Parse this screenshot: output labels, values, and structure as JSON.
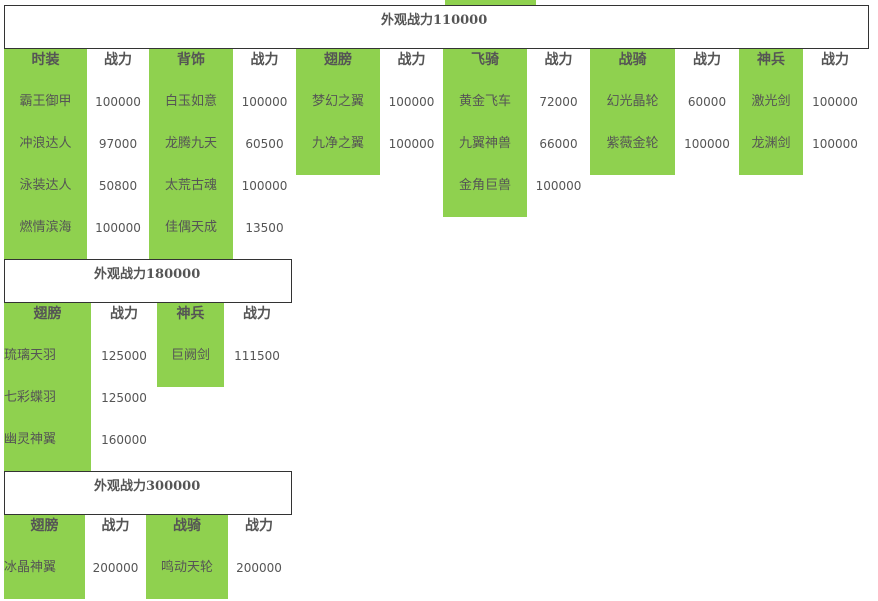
{
  "section1": {
    "title": "外观战力110000",
    "headers": [
      "时装",
      "战力",
      "背饰",
      "战力",
      "翅膀",
      "战力",
      "飞骑",
      "战力",
      "战骑",
      "战力",
      "神兵",
      "战力"
    ],
    "columns": [
      {
        "items": [
          "霸王御甲",
          "冲浪达人",
          "泳装达人",
          "燃情滨海"
        ],
        "powers": [
          "100000",
          "97000",
          "50800",
          "100000"
        ]
      },
      {
        "items": [
          "白玉如意",
          "龙腾九天",
          "太荒古魂",
          "佳偶天成"
        ],
        "powers": [
          "100000",
          "60500",
          "100000",
          "13500"
        ]
      },
      {
        "items": [
          "梦幻之翼",
          "九净之翼"
        ],
        "powers": [
          "100000",
          "100000"
        ]
      },
      {
        "items": [
          "黄金飞车",
          "九翼神兽",
          "金角巨兽"
        ],
        "powers": [
          "72000",
          "66000",
          "100000"
        ]
      },
      {
        "items": [
          "幻光晶轮",
          "紫薇金轮"
        ],
        "powers": [
          "60000",
          "100000"
        ]
      },
      {
        "items": [
          "激光剑",
          "龙渊剑"
        ],
        "powers": [
          "100000",
          "100000"
        ]
      }
    ]
  },
  "section2": {
    "title": "外观战力180000",
    "headers": [
      "翅膀",
      "战力",
      "神兵",
      "战力"
    ],
    "columns": [
      {
        "items": [
          "琉璃天羽",
          "七彩蝶羽",
          "幽灵神翼"
        ],
        "powers": [
          "125000",
          "125000",
          "160000"
        ]
      },
      {
        "items": [
          "巨阙剑"
        ],
        "powers": [
          "111500"
        ]
      }
    ]
  },
  "section3": {
    "title": "外观战力300000",
    "headers": [
      "翅膀",
      "战力",
      "战骑",
      "战力"
    ],
    "columns": [
      {
        "items": [
          "冰晶神翼"
        ],
        "powers": [
          "200000"
        ]
      },
      {
        "items": [
          "鸣动天轮"
        ],
        "powers": [
          "200000"
        ]
      }
    ]
  },
  "colors": {
    "green": "#8fd14f",
    "text": "#555555",
    "border": "#333333"
  }
}
